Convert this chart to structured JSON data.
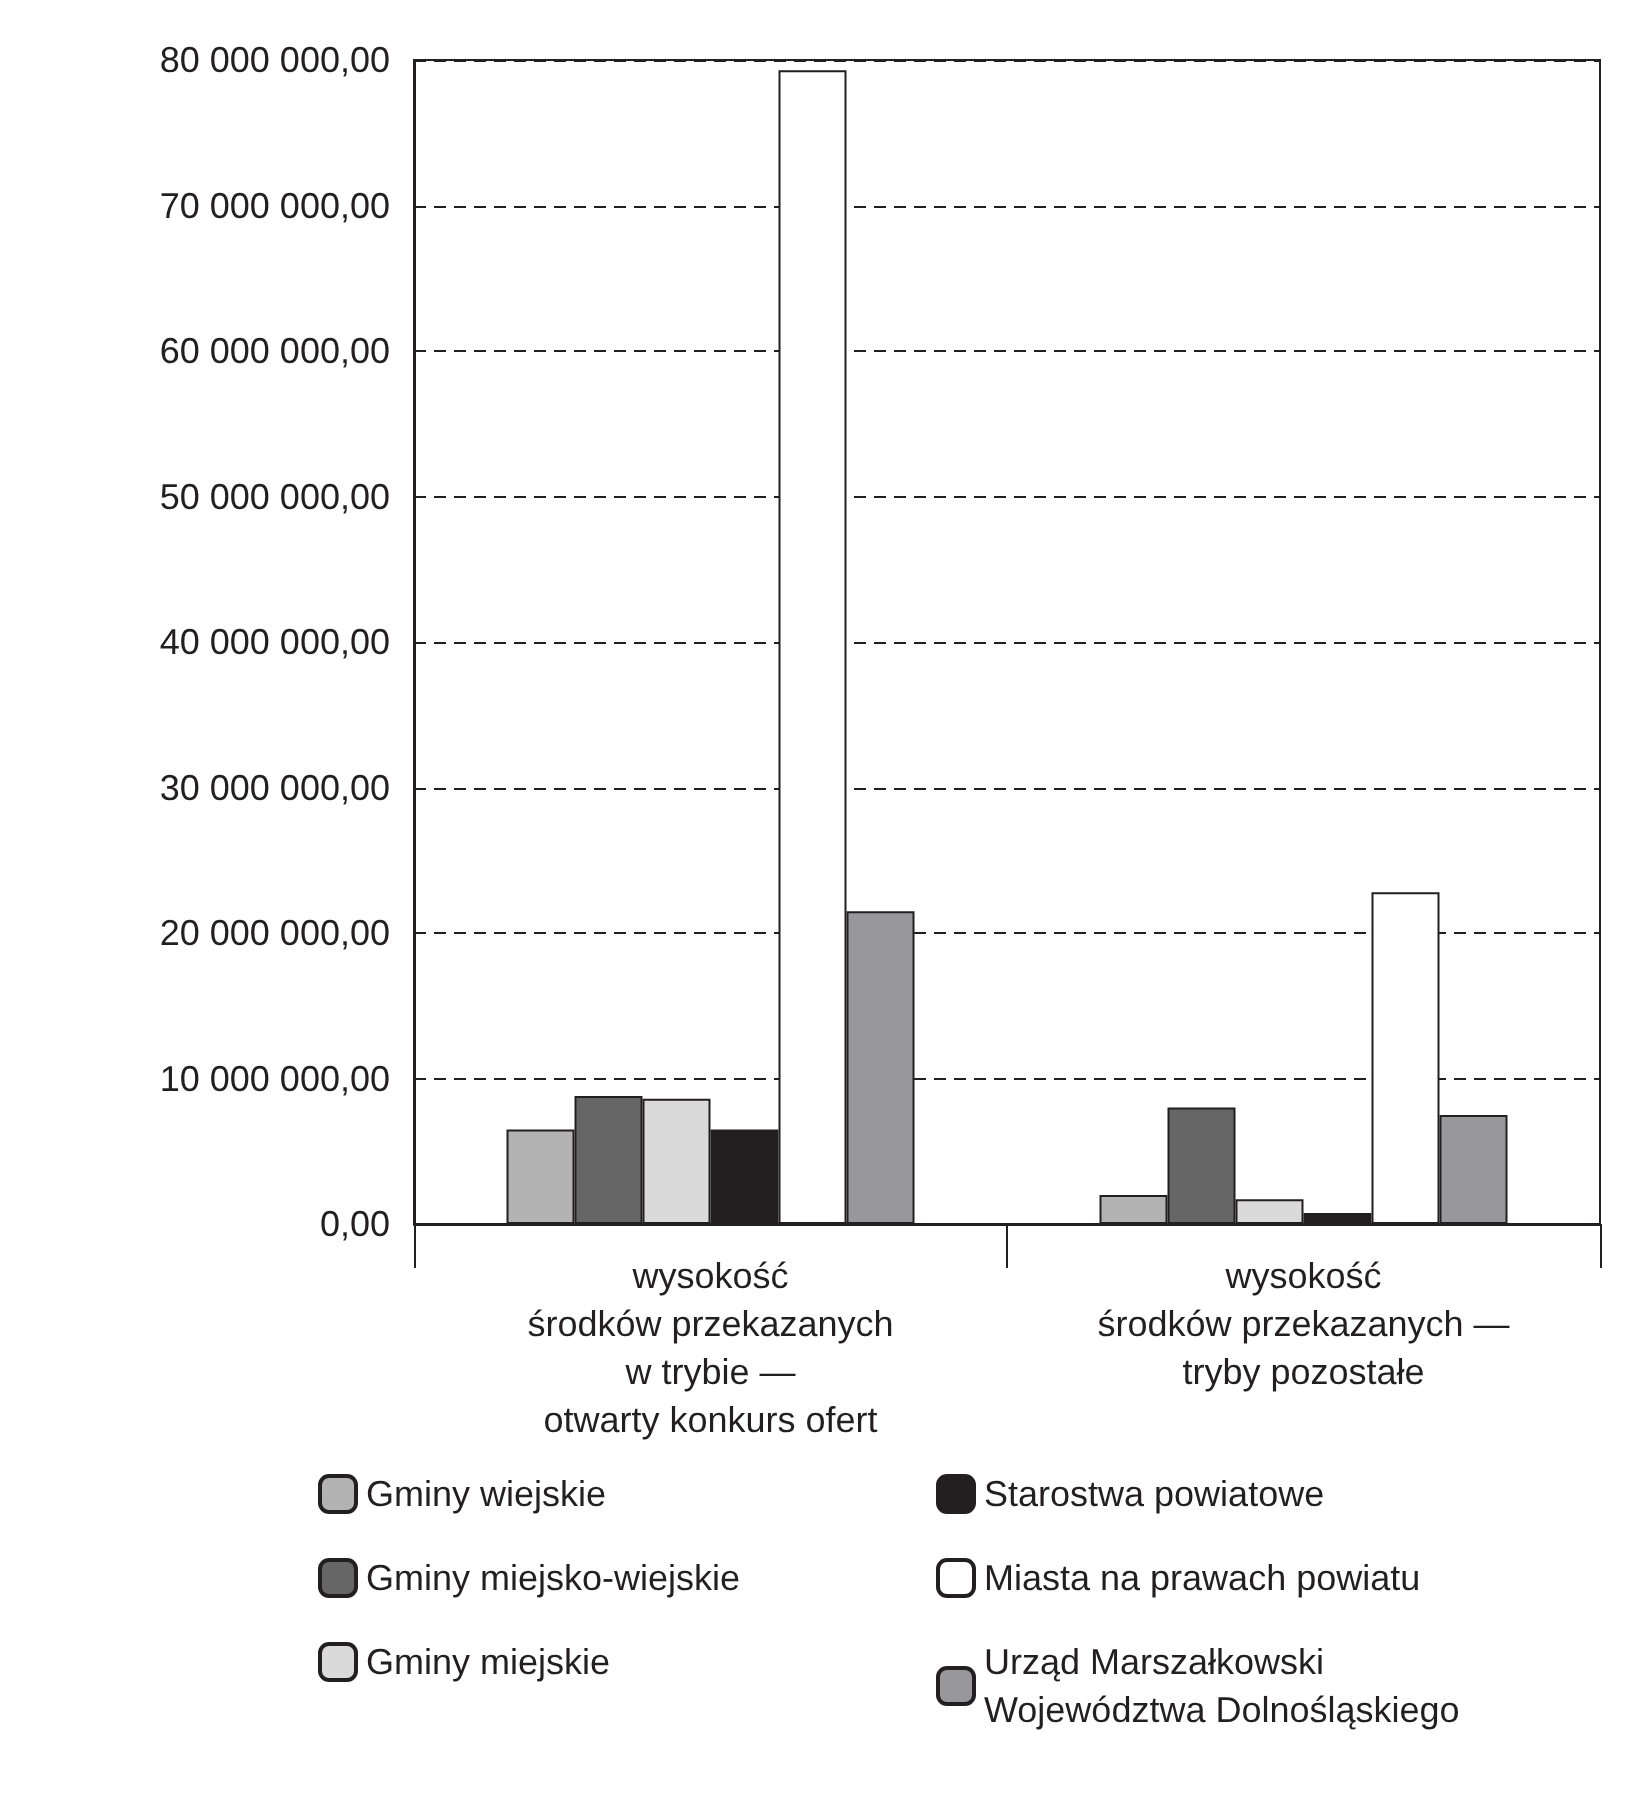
{
  "chart_data": {
    "type": "bar",
    "categories": [
      "wysokość\nśrodków przekazanych\nw trybie —\notwarty konkurs ofert",
      "wysokość\nśrodków przekazanych —\ntryby pozostałe"
    ],
    "series": [
      {
        "name": "Gminy wiejskie",
        "color": "#b3b3b3",
        "values": [
          6500000,
          2000000
        ]
      },
      {
        "name": "Gminy miejsko-wiejskie",
        "color": "#666666",
        "values": [
          8800000,
          8000000
        ]
      },
      {
        "name": "Gminy miejskie",
        "color": "#dadadb",
        "values": [
          8600000,
          1700000
        ]
      },
      {
        "name": "Starostwa powiatowe",
        "color": "#231f20",
        "values": [
          6500000,
          750000
        ]
      },
      {
        "name": "Miasta na prawach powiatu",
        "color": "#ffffff",
        "values": [
          79300000,
          22800000
        ]
      },
      {
        "name": "Urząd Marszałkowski Województwa Dolnośląskiego",
        "color": "#98989a",
        "values": [
          21500000,
          7500000
        ]
      }
    ],
    "ylim": [
      0,
      80000000
    ],
    "yticks": [
      {
        "value": 0,
        "label": "0,00"
      },
      {
        "value": 10000000,
        "label": "10 000 000,00"
      },
      {
        "value": 20000000,
        "label": "20 000 000,00"
      },
      {
        "value": 30000000,
        "label": "30 000 000,00"
      },
      {
        "value": 40000000,
        "label": "40 000 000,00"
      },
      {
        "value": 50000000,
        "label": "50 000 000,00"
      },
      {
        "value": 60000000,
        "label": "60 000 000,00"
      },
      {
        "value": 70000000,
        "label": "70 000 000,00"
      },
      {
        "value": 80000000,
        "label": "80 000 000,00"
      }
    ],
    "grid": "y",
    "legend": "bottom"
  }
}
